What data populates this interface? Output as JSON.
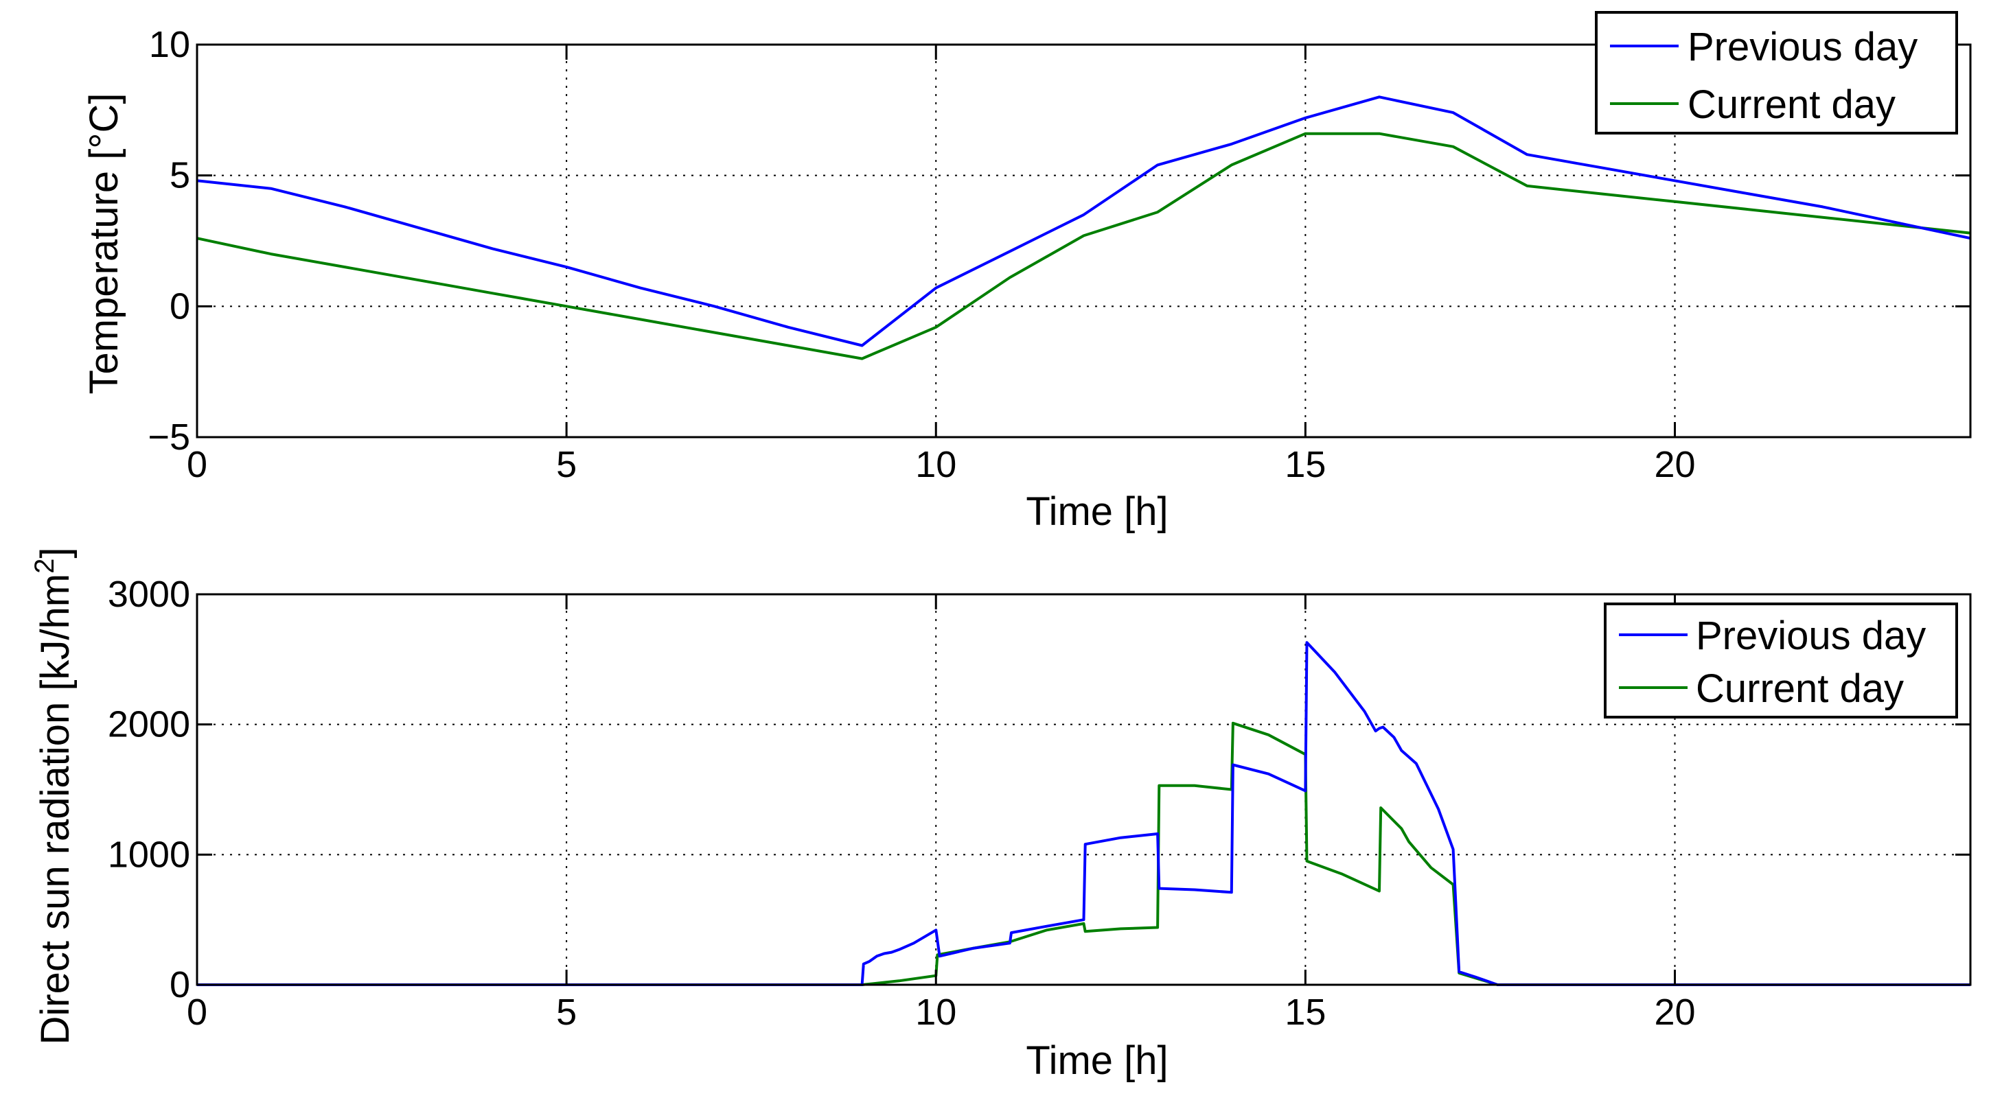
{
  "colors": {
    "previous": "#0000ff",
    "current": "#007f00",
    "axis": "#000000",
    "grid": "#000000",
    "background": "#ffffff"
  },
  "chart_data": [
    {
      "type": "line",
      "xlabel": "Time [h]",
      "ylabel": "Temperature [°C]",
      "xlim": [
        0,
        24
      ],
      "ylim": [
        -5,
        10
      ],
      "xticks": [
        0,
        5,
        10,
        15,
        20
      ],
      "yticks": [
        -5,
        0,
        5,
        10
      ],
      "xtick_labels": [
        "0",
        "5",
        "10",
        "15",
        "20"
      ],
      "ytick_labels": [
        "−5",
        "0",
        "5",
        "10"
      ],
      "grid": true,
      "legend_position": "top-right",
      "series": [
        {
          "name": "Previous day",
          "color": "#0000ff",
          "x": [
            0,
            1,
            2,
            3,
            4,
            5,
            6,
            7,
            8,
            9,
            10,
            11,
            12,
            13,
            14,
            15,
            16,
            17,
            18,
            19,
            20,
            21,
            22,
            23,
            24
          ],
          "y": [
            4.8,
            4.5,
            3.8,
            3.0,
            2.2,
            1.5,
            0.7,
            0.0,
            -0.8,
            -1.5,
            0.7,
            2.1,
            3.5,
            5.4,
            6.2,
            7.2,
            8.0,
            7.4,
            5.8,
            5.3,
            4.8,
            4.3,
            3.8,
            3.2,
            2.6
          ]
        },
        {
          "name": "Current day",
          "color": "#007f00",
          "x": [
            0,
            1,
            2,
            3,
            4,
            5,
            6,
            7,
            8,
            9,
            10,
            11,
            12,
            13,
            14,
            15,
            16,
            17,
            18,
            19,
            20,
            21,
            22,
            23,
            24
          ],
          "y": [
            2.6,
            2.0,
            1.5,
            1.0,
            0.5,
            0.0,
            -0.5,
            -1.0,
            -1.5,
            -2.0,
            -0.8,
            1.1,
            2.7,
            3.6,
            5.4,
            6.6,
            6.6,
            6.1,
            4.6,
            4.3,
            4.0,
            3.7,
            3.4,
            3.1,
            2.8
          ]
        }
      ]
    },
    {
      "type": "line",
      "xlabel": "Time [h]",
      "ylabel": "Direct sun radiation [kJ/hm",
      "ylabel_superscript": "2",
      "ylabel_suffix": "]",
      "xlim": [
        0,
        24
      ],
      "ylim": [
        0,
        3000
      ],
      "xticks": [
        0,
        5,
        10,
        15,
        20
      ],
      "yticks": [
        0,
        1000,
        2000,
        3000
      ],
      "xtick_labels": [
        "0",
        "5",
        "10",
        "15",
        "20"
      ],
      "ytick_labels": [
        "0",
        "1000",
        "2000",
        "3000"
      ],
      "grid": true,
      "legend_position": "top-right",
      "series": [
        {
          "name": "Previous day",
          "color": "#0000ff",
          "x": [
            0,
            9.0,
            9.02,
            9.1,
            9.2,
            9.3,
            9.4,
            9.5,
            9.7,
            10.0,
            10.05,
            10.2,
            10.5,
            11.0,
            11.02,
            11.5,
            12.0,
            12.02,
            12.5,
            13.0,
            13.02,
            13.5,
            14.0,
            14.02,
            14.5,
            15.0,
            15.02,
            15.4,
            15.8,
            15.95,
            16.0,
            16.05,
            16.2,
            16.3,
            16.5,
            16.8,
            17.0,
            17.08,
            17.3,
            17.6,
            24
          ],
          "y": [
            0,
            0,
            160,
            180,
            220,
            240,
            250,
            270,
            320,
            420,
            220,
            240,
            280,
            320,
            400,
            450,
            500,
            1080,
            1130,
            1160,
            740,
            730,
            710,
            1690,
            1620,
            1490,
            2630,
            2400,
            2100,
            1950,
            1970,
            1980,
            1900,
            1800,
            1700,
            1350,
            1040,
            100,
            60,
            0,
            0
          ]
        },
        {
          "name": "Current day",
          "color": "#007f00",
          "x": [
            0,
            9.0,
            9.5,
            10.0,
            10.02,
            10.5,
            11.0,
            11.5,
            12.0,
            12.02,
            12.5,
            13.0,
            13.02,
            13.5,
            14.0,
            14.02,
            14.5,
            15.0,
            15.02,
            15.5,
            16.0,
            16.02,
            16.3,
            16.4,
            16.7,
            17.0,
            17.08,
            17.6,
            24
          ],
          "y": [
            0,
            0,
            30,
            70,
            230,
            280,
            330,
            420,
            470,
            410,
            430,
            440,
            1530,
            1530,
            1500,
            2010,
            1920,
            1770,
            950,
            850,
            720,
            1360,
            1200,
            1100,
            900,
            770,
            90,
            0,
            0
          ]
        }
      ]
    }
  ]
}
